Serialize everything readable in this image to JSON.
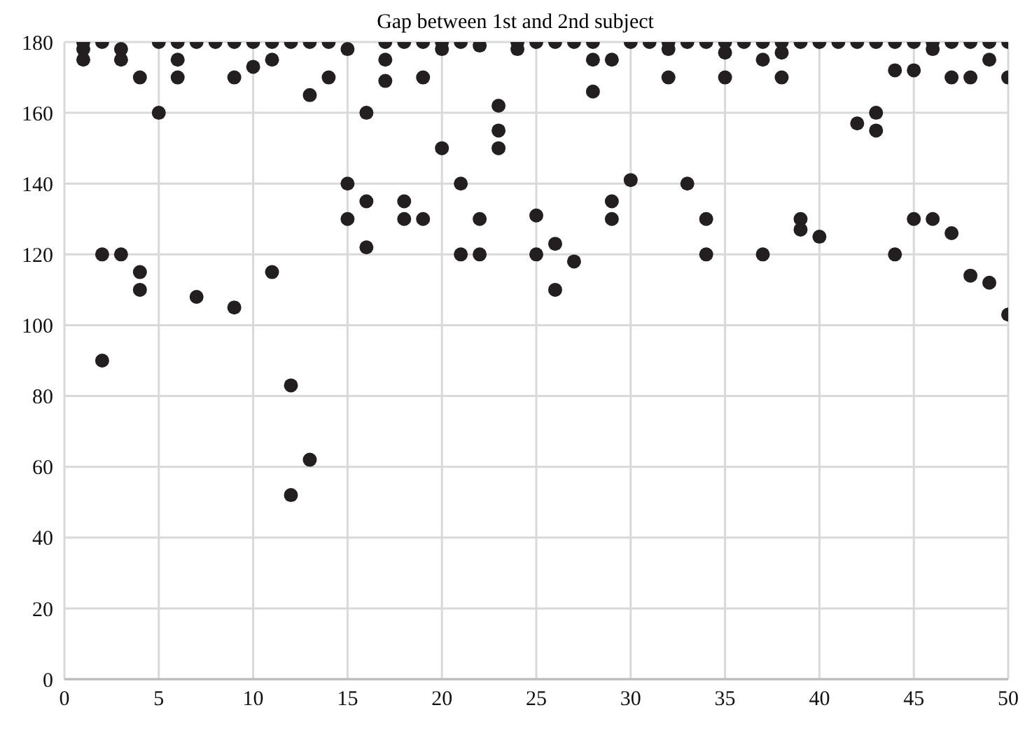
{
  "chart_data": {
    "type": "scatter",
    "title": "Gap between 1st and 2nd subject",
    "x": [
      1,
      1,
      1,
      2,
      2,
      2,
      3,
      3,
      3,
      4,
      4,
      4,
      5,
      5,
      6,
      6,
      6,
      7,
      7,
      8,
      9,
      9,
      9,
      10,
      10,
      11,
      11,
      11,
      12,
      12,
      12,
      13,
      13,
      13,
      14,
      14,
      15,
      15,
      15,
      16,
      16,
      16,
      17,
      17,
      17,
      18,
      18,
      18,
      19,
      19,
      19,
      20,
      20,
      20,
      21,
      21,
      21,
      22,
      22,
      22,
      23,
      23,
      23,
      24,
      24,
      25,
      25,
      25,
      26,
      26,
      26,
      27,
      27,
      28,
      28,
      28,
      29,
      29,
      29,
      30,
      30,
      31,
      32,
      32,
      32,
      33,
      33,
      34,
      34,
      34,
      35,
      35,
      35,
      36,
      37,
      37,
      37,
      38,
      38,
      38,
      39,
      39,
      39,
      40,
      40,
      41,
      42,
      42,
      43,
      43,
      43,
      44,
      44,
      44,
      45,
      45,
      45,
      46,
      46,
      46,
      47,
      47,
      47,
      48,
      48,
      48,
      49,
      49,
      49,
      50,
      50,
      50
    ],
    "values": [
      180,
      178,
      175,
      180,
      120,
      90,
      178,
      175,
      120,
      170,
      115,
      110,
      180,
      160,
      180,
      175,
      170,
      180,
      108,
      180,
      180,
      170,
      105,
      180,
      173,
      180,
      175,
      115,
      180,
      83,
      52,
      180,
      165,
      62,
      180,
      170,
      178,
      140,
      130,
      160,
      135,
      122,
      180,
      175,
      169,
      180,
      135,
      130,
      180,
      170,
      130,
      180,
      178,
      150,
      180,
      140,
      120,
      179,
      130,
      120,
      162,
      155,
      150,
      180,
      178,
      180,
      131,
      120,
      180,
      123,
      110,
      180,
      118,
      180,
      175,
      166,
      175,
      135,
      130,
      180,
      141,
      180,
      180,
      178,
      170,
      180,
      140,
      180,
      130,
      120,
      180,
      177,
      170,
      180,
      180,
      175,
      120,
      180,
      177,
      170,
      180,
      130,
      127,
      180,
      125,
      180,
      180,
      157,
      180,
      160,
      155,
      180,
      172,
      120,
      180,
      172,
      130,
      180,
      178,
      130,
      180,
      170,
      126,
      180,
      170,
      114,
      180,
      175,
      112,
      180,
      170,
      103
    ],
    "color": "#231f20",
    "marker": "circle",
    "grid": true,
    "xlim": [
      0,
      50
    ],
    "xticks": [
      0,
      5,
      10,
      15,
      20,
      25,
      30,
      35,
      40,
      45,
      50
    ],
    "ylim": [
      0,
      180
    ],
    "yticks": [
      0,
      20,
      40,
      60,
      80,
      100,
      120,
      140,
      160,
      180
    ]
  }
}
